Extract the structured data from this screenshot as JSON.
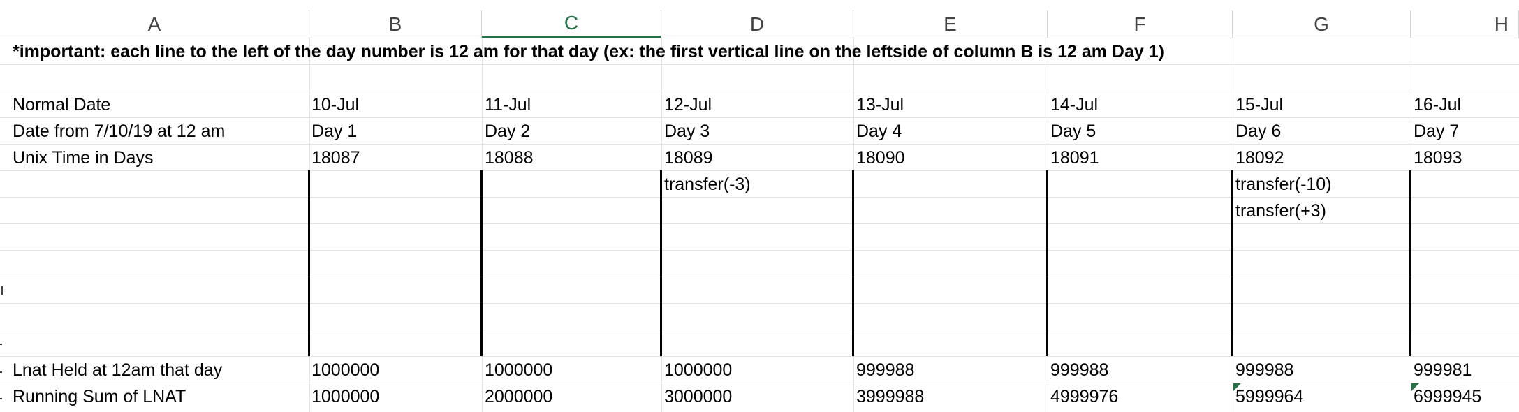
{
  "columns": [
    "A",
    "B",
    "C",
    "D",
    "E",
    "F",
    "G",
    "H"
  ],
  "selected_column": "C",
  "note": "*important: each line to the left of the day number is 12 am for that day (ex: the first vertical line on the leftside of column B is 12 am Day 1)",
  "rows": {
    "normal_date": {
      "label": "Normal Date",
      "values": [
        "10-Jul",
        "11-Jul",
        "12-Jul",
        "13-Jul",
        "14-Jul",
        "15-Jul",
        "16-Jul"
      ]
    },
    "date_from": {
      "label": "Date from 7/10/19 at 12 am",
      "values": [
        "Day 1",
        "Day 2",
        "Day 3",
        "Day 4",
        "Day 5",
        "Day 6",
        "Day 7"
      ]
    },
    "unix_time": {
      "label": "Unix Time in Days",
      "values": [
        "18087",
        "18088",
        "18089",
        "18090",
        "18091",
        "18092",
        "18093"
      ]
    },
    "transfers": {
      "d_row1": "transfer(-3)",
      "g_row1": "transfer(-10)",
      "g_row2": "transfer(+3)"
    },
    "lnat_held": {
      "label": "Lnat Held at 12am that day",
      "values": [
        "1000000",
        "1000000",
        "1000000",
        "999988",
        "999988",
        "999988",
        "999981"
      ]
    },
    "running_sum": {
      "label": "Running Sum of LNAT",
      "values": [
        "1000000",
        "2000000",
        "3000000",
        "3999988",
        "4999976",
        "5999964",
        "6999945"
      ]
    }
  },
  "colors": {
    "selected_header": "#217346",
    "gridline": "#e1e1e1",
    "error_indicator": "#217346"
  }
}
